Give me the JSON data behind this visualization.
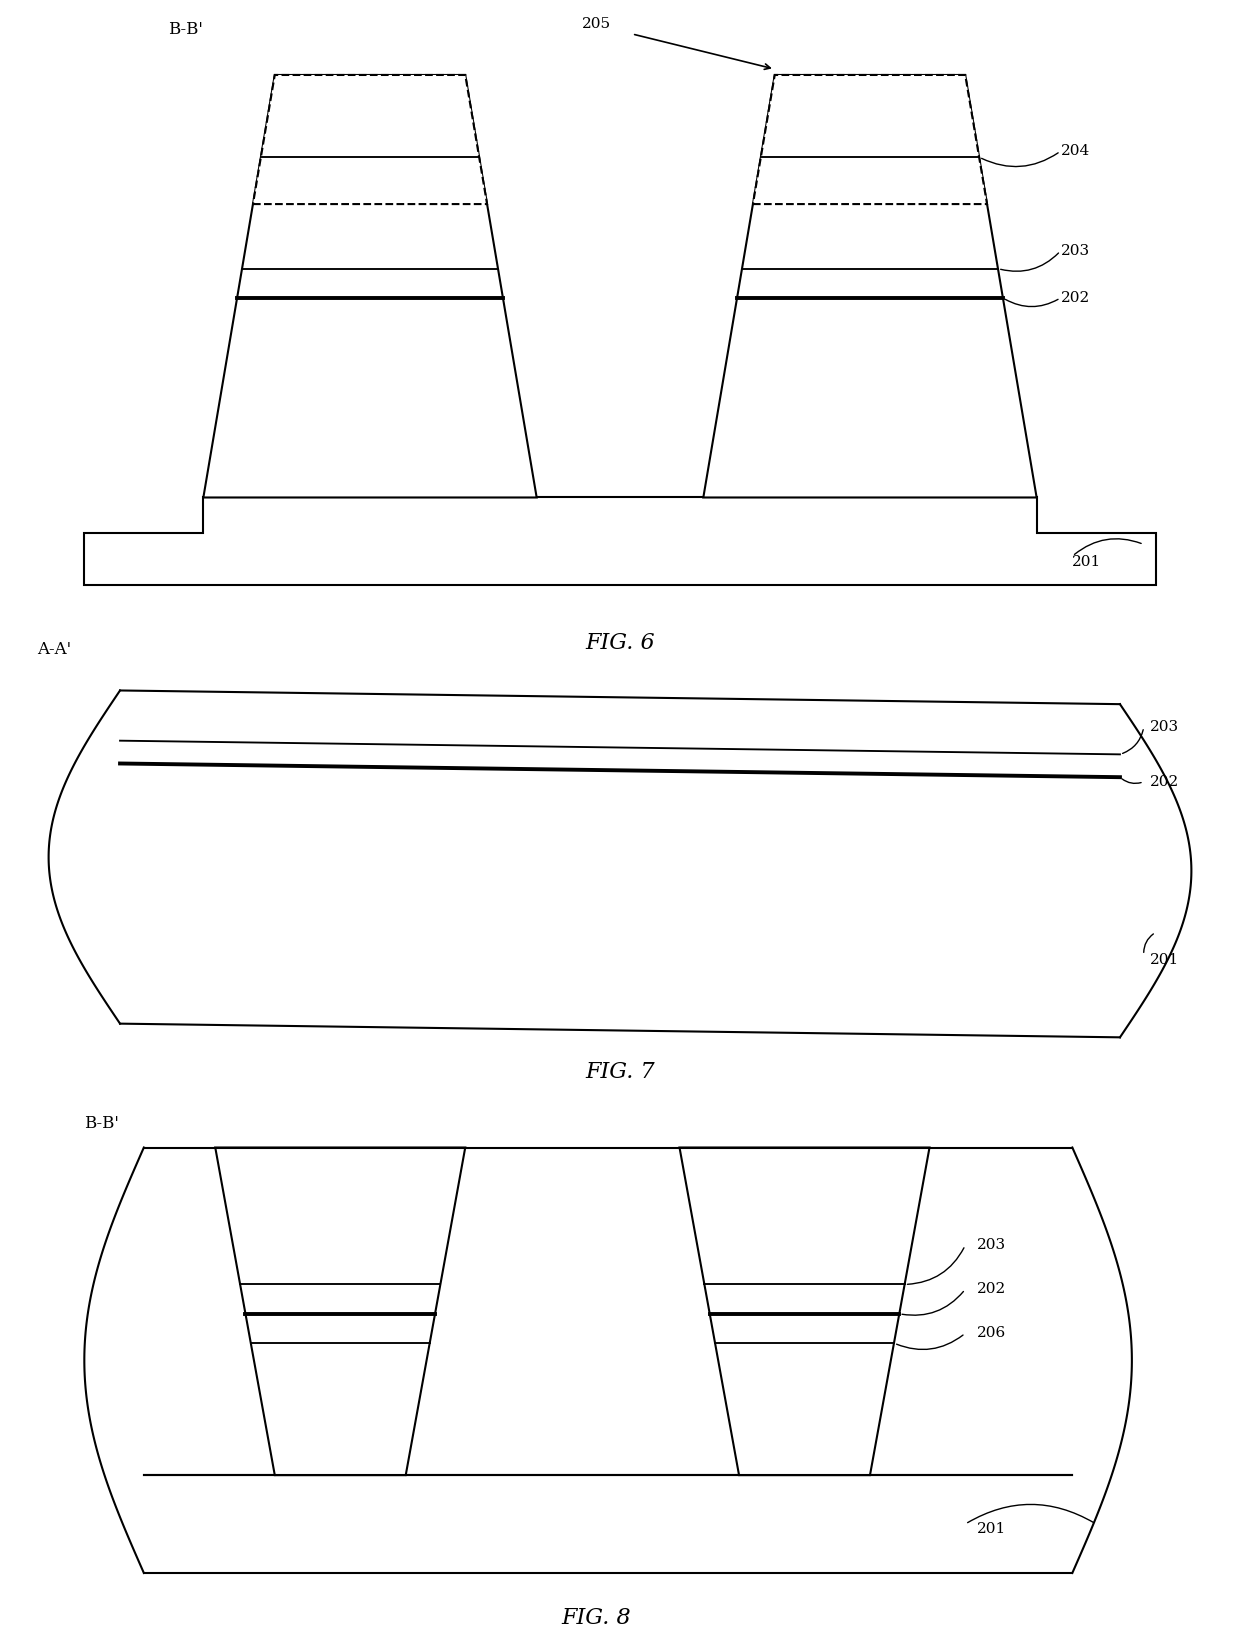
{
  "fig6_label": "FIG. 6",
  "fig7_label": "FIG. 7",
  "fig8_label": "FIG. 8",
  "bg_color": "#ffffff",
  "line_color": "#000000",
  "lw": 1.5,
  "tlw": 2.8
}
